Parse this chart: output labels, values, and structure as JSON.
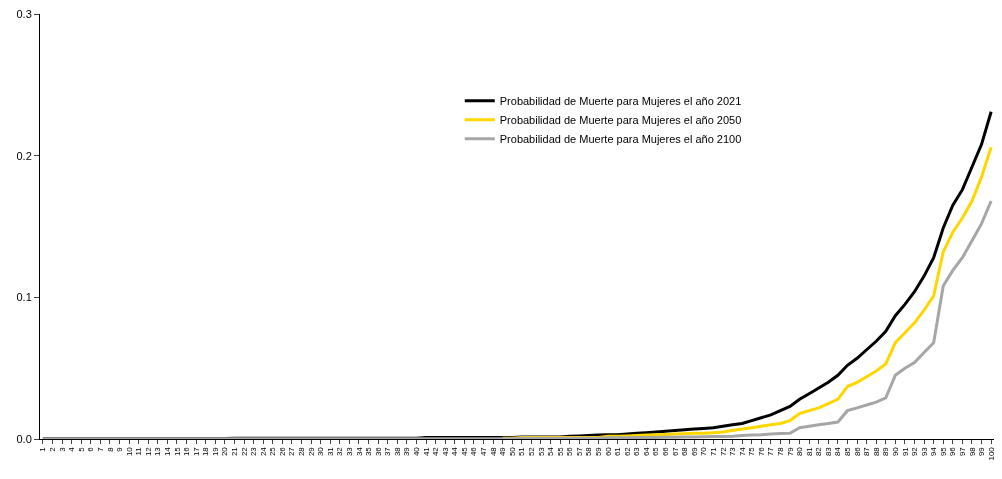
{
  "chart_data": {
    "type": "line",
    "categories": [
      "1",
      "2",
      "3",
      "4",
      "5",
      "6",
      "7",
      "8",
      "9",
      "10",
      "11",
      "12",
      "13",
      "14",
      "15",
      "16",
      "17",
      "18",
      "19",
      "20",
      "21",
      "22",
      "23",
      "24",
      "25",
      "26",
      "27",
      "28",
      "29",
      "30",
      "31",
      "32",
      "33",
      "34",
      "35",
      "36",
      "37",
      "38",
      "39",
      "40",
      "41",
      "42",
      "43",
      "44",
      "45",
      "46",
      "47",
      "48",
      "49",
      "50",
      "51",
      "52",
      "53",
      "54",
      "55",
      "56",
      "57",
      "58",
      "59",
      "60",
      "61",
      "62",
      "63",
      "64",
      "65",
      "66",
      "67",
      "68",
      "69",
      "70",
      "71",
      "72",
      "73",
      "74",
      "75",
      "76",
      "77",
      "78",
      "79",
      "80",
      "81",
      "82",
      "83",
      "84",
      "85",
      "86",
      "87",
      "88",
      "89",
      "90",
      "91",
      "92",
      "93",
      "94",
      "95",
      "96",
      "97",
      "98",
      "99",
      "100"
    ],
    "series": [
      {
        "name": "Probabilidad de Muerte para Mujeres el año 2021",
        "color": "#000000",
        "values": [
          0.0003,
          0.0003,
          0.0003,
          0.0003,
          0.0003,
          0.0003,
          0.0003,
          0.0003,
          0.0003,
          0.0003,
          0.0003,
          0.0003,
          0.0003,
          0.0003,
          0.0003,
          0.0003,
          0.0003,
          0.0003,
          0.0003,
          0.0003,
          0.0005,
          0.0005,
          0.0005,
          0.0005,
          0.0005,
          0.0005,
          0.0005,
          0.0005,
          0.0005,
          0.0005,
          0.0005,
          0.0005,
          0.0005,
          0.0005,
          0.0005,
          0.0005,
          0.0005,
          0.0005,
          0.0005,
          0.0005,
          0.001,
          0.001,
          0.001,
          0.001,
          0.001,
          0.001,
          0.001,
          0.001,
          0.001,
          0.001,
          0.0015,
          0.0015,
          0.0015,
          0.0015,
          0.0015,
          0.002,
          0.0022,
          0.0025,
          0.0028,
          0.003,
          0.003,
          0.0035,
          0.004,
          0.0045,
          0.005,
          0.0055,
          0.006,
          0.0065,
          0.007,
          0.0075,
          0.008,
          0.009,
          0.01,
          0.011,
          0.013,
          0.015,
          0.017,
          0.02,
          0.023,
          0.028,
          0.032,
          0.036,
          0.04,
          0.045,
          0.052,
          0.057,
          0.063,
          0.069,
          0.076,
          0.087,
          0.095,
          0.104,
          0.115,
          0.128,
          0.149,
          0.165,
          0.176,
          0.192,
          0.208,
          0.231
        ]
      },
      {
        "name": "Probabilidad de Muerte para Mujeres el año 2050",
        "color": "#ffd700",
        "values": [
          null,
          null,
          null,
          null,
          null,
          null,
          null,
          null,
          null,
          null,
          null,
          null,
          null,
          null,
          null,
          null,
          null,
          null,
          null,
          null,
          null,
          null,
          null,
          null,
          null,
          null,
          null,
          null,
          null,
          null,
          null,
          null,
          null,
          null,
          null,
          null,
          null,
          null,
          null,
          null,
          null,
          null,
          null,
          null,
          null,
          null,
          null,
          null,
          0.0005,
          0.0005,
          0.001,
          0.001,
          0.001,
          0.001,
          0.001,
          0.001,
          0.001,
          0.001,
          0.001,
          0.002,
          0.002,
          0.0022,
          0.0025,
          0.0028,
          0.003,
          0.0032,
          0.0035,
          0.0037,
          0.004,
          0.004,
          0.0045,
          0.005,
          0.006,
          0.007,
          0.008,
          0.009,
          0.01,
          0.011,
          0.013,
          0.018,
          0.02,
          0.022,
          0.025,
          0.028,
          0.037,
          0.04,
          0.044,
          0.048,
          0.053,
          0.068,
          0.075,
          0.082,
          0.091,
          0.101,
          0.132,
          0.146,
          0.156,
          0.168,
          0.185,
          0.206
        ]
      },
      {
        "name": "Probabilidad de Muerte para Mujeres el año 2100",
        "color": "#a6a6a6",
        "values": [
          0.0001,
          0.0001,
          0.0001,
          0.0001,
          0.0001,
          0.0001,
          0.0001,
          0.0001,
          0.0001,
          0.0001,
          0.0001,
          0.0001,
          0.0001,
          0.0001,
          0.0001,
          0.0001,
          0.0001,
          0.0001,
          0.0001,
          0.0001,
          0.0001,
          0.0001,
          0.0001,
          0.0001,
          0.0001,
          0.0001,
          0.0001,
          0.0001,
          0.0001,
          0.0001,
          0.0001,
          0.0001,
          0.0001,
          0.0001,
          0.0001,
          0.0001,
          0.0001,
          0.0001,
          0.0001,
          0.0001,
          0.0001,
          0.0001,
          0.0001,
          0.0001,
          0.0001,
          0.0001,
          0.0001,
          0.0001,
          0.0001,
          0.0001,
          0.0005,
          0.0005,
          0.0005,
          0.0005,
          0.0005,
          0.0005,
          0.0005,
          0.0005,
          0.0005,
          0.0008,
          0.0008,
          0.0009,
          0.001,
          0.001,
          0.0011,
          0.0012,
          0.0013,
          0.0014,
          0.0015,
          0.0016,
          0.0017,
          0.0018,
          0.002,
          0.0025,
          0.0028,
          0.003,
          0.0035,
          0.0038,
          0.004,
          0.008,
          0.009,
          0.01,
          0.011,
          0.012,
          0.02,
          0.022,
          0.024,
          0.026,
          0.029,
          0.045,
          0.05,
          0.054,
          0.061,
          0.068,
          0.108,
          0.119,
          0.128,
          0.14,
          0.152,
          0.168
        ]
      }
    ],
    "ylim": [
      0,
      0.3
    ],
    "yticks": [
      {
        "value": 0,
        "label": "0.0"
      },
      0.1,
      0.2,
      0.3
    ],
    "legend": "top right",
    "marker": "none",
    "line_style": "solid"
  }
}
